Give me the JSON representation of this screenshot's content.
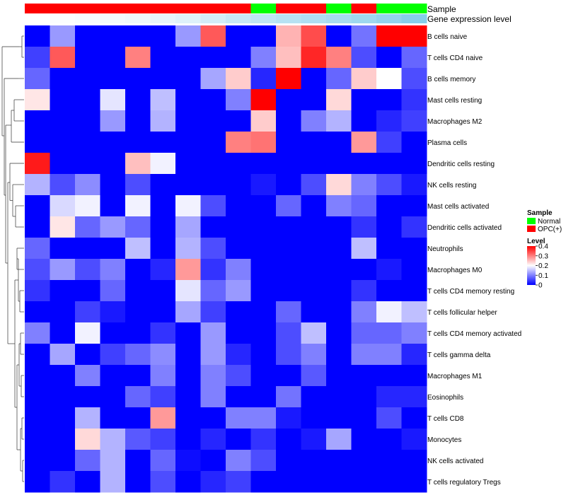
{
  "chart_data": {
    "type": "heatmap",
    "title": "",
    "columns": 16,
    "rows": [
      "B cells naive",
      "T cells CD4 naive",
      "B cells memory",
      "Mast cells resting",
      "Macrophages M2",
      "Plasma cells",
      "Dendritic cells resting",
      "NK cells resting",
      "Mast cells activated",
      "Dendritic cells activated",
      "Neutrophils",
      "Macrophages M0",
      "T cells CD4 memory resting",
      "T cells follicular helper",
      "T cells CD4 memory activated",
      "T cells gamma delta",
      "Macrophages M1",
      "Eosinophils",
      "T cells CD8",
      "Monocytes",
      "NK cells activated",
      "T cells regulatory  Tregs"
    ],
    "values": [
      [
        0,
        0.12,
        0,
        0,
        0,
        0,
        0.12,
        0.33,
        0,
        0,
        0.26,
        0.34,
        0,
        0.09,
        0.4,
        0.4
      ],
      [
        0.05,
        0.33,
        0,
        0,
        0.3,
        0,
        0,
        0,
        0,
        0.1,
        0.25,
        0.37,
        0.3,
        0.06,
        0,
        0.08
      ],
      [
        0.08,
        0,
        0,
        0,
        0,
        0,
        0,
        0.13,
        0.24,
        0.03,
        0.4,
        0,
        0.08,
        0.24,
        0.2,
        0.06
      ],
      [
        0.22,
        0,
        0,
        0.18,
        0,
        0.15,
        0,
        0,
        0.1,
        0.4,
        0,
        0,
        0.23,
        0,
        0,
        0.04
      ],
      [
        0,
        0,
        0,
        0.12,
        0,
        0.14,
        0,
        0,
        0,
        0.24,
        0,
        0.1,
        0.14,
        0,
        0.03,
        0.05
      ],
      [
        0,
        0,
        0,
        0,
        0,
        0,
        0,
        0,
        0.3,
        0.31,
        0,
        0,
        0,
        0.28,
        0.05,
        0
      ],
      [
        0.38,
        0,
        0,
        0,
        0.25,
        0.19,
        0,
        0,
        0,
        0,
        0,
        0,
        0,
        0,
        0,
        0
      ],
      [
        0.14,
        0.06,
        0.11,
        0,
        0.06,
        0,
        0,
        0,
        0,
        0.02,
        0,
        0.06,
        0.23,
        0.1,
        0.06,
        0.02
      ],
      [
        0,
        0.17,
        0.19,
        0,
        0.19,
        0,
        0.19,
        0.06,
        0,
        0,
        0.08,
        0,
        0.1,
        0.08,
        0,
        0
      ],
      [
        0,
        0.22,
        0.08,
        0.12,
        0.08,
        0,
        0.13,
        0,
        0,
        0,
        0,
        0,
        0,
        0.04,
        0,
        0.04
      ],
      [
        0.08,
        0,
        0,
        0,
        0.15,
        0,
        0.14,
        0.06,
        0,
        0,
        0,
        0,
        0,
        0.15,
        0,
        0
      ],
      [
        0.06,
        0.12,
        0.06,
        0.1,
        0,
        0.03,
        0.28,
        0.04,
        0.1,
        0,
        0,
        0,
        0,
        0,
        0.02,
        0
      ],
      [
        0.04,
        0,
        0,
        0.08,
        0,
        0,
        0.18,
        0.08,
        0.12,
        0,
        0,
        0,
        0,
        0.04,
        0,
        0
      ],
      [
        0,
        0,
        0.05,
        0.02,
        0,
        0,
        0.13,
        0.05,
        0,
        0,
        0.08,
        0,
        0,
        0.1,
        0.19,
        0.15
      ],
      [
        0.1,
        0,
        0.19,
        0,
        0,
        0.04,
        0,
        0.12,
        0,
        0,
        0.06,
        0.15,
        0,
        0.08,
        0.08,
        0.1
      ],
      [
        0,
        0.13,
        0,
        0.05,
        0.08,
        0.11,
        0,
        0.12,
        0.03,
        0,
        0.06,
        0.1,
        0,
        0.1,
        0.1,
        0.03
      ],
      [
        0,
        0,
        0.1,
        0,
        0,
        0.1,
        0,
        0.1,
        0.06,
        0,
        0,
        0.07,
        0,
        0,
        0,
        0
      ],
      [
        0,
        0,
        0,
        0,
        0.08,
        0.05,
        0,
        0.1,
        0,
        0,
        0.09,
        0,
        0,
        0,
        0.03,
        0.03
      ],
      [
        0,
        0,
        0.14,
        0,
        0,
        0.28,
        0,
        0,
        0.1,
        0.1,
        0.02,
        0,
        0,
        0,
        0.06,
        0
      ],
      [
        0,
        0,
        0.23,
        0.14,
        0.07,
        0.05,
        0,
        0.03,
        0,
        0.04,
        0,
        0.02,
        0.13,
        0,
        0,
        0.02
      ],
      [
        0,
        0,
        0.08,
        0.14,
        0,
        0.08,
        0.01,
        0,
        0.1,
        0.06,
        0,
        0,
        0,
        0,
        0,
        0
      ],
      [
        0,
        0.04,
        0,
        0.14,
        0,
        0.06,
        0,
        0.03,
        0.05,
        0,
        0,
        0,
        0,
        0,
        0,
        0
      ]
    ],
    "sample": [
      "OPC(+)",
      "OPC(+)",
      "OPC(+)",
      "OPC(+)",
      "OPC(+)",
      "OPC(+)",
      "OPC(+)",
      "OPC(+)",
      "OPC(+)",
      "Normal",
      "OPC(+)",
      "OPC(+)",
      "Normal",
      "OPC(+)",
      "Normal",
      "Normal"
    ],
    "gene_expression_level": [
      0.06,
      0.07,
      0.08,
      0.09,
      0.1,
      0.12,
      0.14,
      0.17,
      0.2,
      0.22,
      0.24,
      0.26,
      0.28,
      0.3,
      0.33,
      0.36
    ],
    "annotation_labels": {
      "sample": "Sample",
      "gene_expression": "Gene expression level"
    },
    "legend": {
      "placement": "right",
      "sample_title": "Sample",
      "sample_entries": [
        {
          "label": "Normal",
          "color": "#00ff00"
        },
        {
          "label": "OPC(+)",
          "color": "#ff0000"
        }
      ],
      "level_title": "Level",
      "level_ticks": [
        0.4,
        0.3,
        0.2,
        0.1,
        0
      ],
      "level_range": [
        0,
        0.4
      ]
    },
    "colors": {
      "low": "#0000ff",
      "mid": "#ffffff",
      "high": "#ff0000",
      "gene_low": "#ffffff",
      "gene_high": "#87ceeb"
    }
  }
}
